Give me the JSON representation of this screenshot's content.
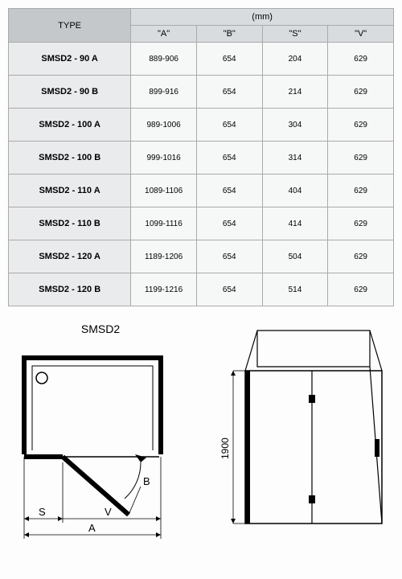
{
  "table": {
    "type_header": "TYPE",
    "unit_header": "(mm)",
    "columns": [
      "\"A\"",
      "\"B\"",
      "\"S\"",
      "\"V\""
    ],
    "rows": [
      {
        "type": "SMSD2 - 90 A",
        "a": "889-906",
        "b": "654",
        "s": "204",
        "v": "629"
      },
      {
        "type": "SMSD2 - 90 B",
        "a": "899-916",
        "b": "654",
        "s": "214",
        "v": "629"
      },
      {
        "type": "SMSD2 - 100 A",
        "a": "989-1006",
        "b": "654",
        "s": "304",
        "v": "629"
      },
      {
        "type": "SMSD2 - 100 B",
        "a": "999-1016",
        "b": "654",
        "s": "314",
        "v": "629"
      },
      {
        "type": "SMSD2 - 110 A",
        "a": "1089-1106",
        "b": "654",
        "s": "404",
        "v": "629"
      },
      {
        "type": "SMSD2 - 110 B",
        "a": "1099-1116",
        "b": "654",
        "s": "414",
        "v": "629"
      },
      {
        "type": "SMSD2 - 120 A",
        "a": "1189-1206",
        "b": "654",
        "s": "504",
        "v": "629"
      },
      {
        "type": "SMSD2 - 120 B",
        "a": "1199-1216",
        "b": "654",
        "s": "514",
        "v": "629"
      }
    ],
    "header_bg": "#c5c8ca",
    "subheader_bg": "#d9dcde",
    "type_cell_bg": "#e9ebec",
    "val_cell_bg": "#f6f7f7",
    "border_color": "#aaaaaa"
  },
  "diagram": {
    "title": "SMSD2",
    "labels": {
      "A": "A",
      "B": "B",
      "S": "S",
      "V": "V",
      "height": "1900"
    },
    "stroke": "#000000",
    "thick_stroke_width": 4,
    "thin_stroke_width": 1,
    "fontsize": 12
  }
}
